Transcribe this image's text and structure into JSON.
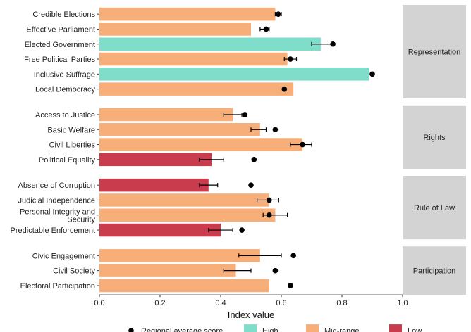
{
  "chart_data": {
    "type": "bar",
    "orientation": "horizontal",
    "xlabel": "Index value",
    "xlim": [
      0.0,
      1.0
    ],
    "xticks": [
      "0.0",
      "0.2",
      "0.4",
      "0.6",
      "0.8",
      "1.0"
    ],
    "grid": false,
    "legend_position": "bottom",
    "legend": {
      "marker_label": "Regional average score",
      "categories": [
        {
          "key": "high",
          "label": "High",
          "color": "#7FDEC9"
        },
        {
          "key": "mid",
          "label": "Mid-range",
          "color": "#F7AE78"
        },
        {
          "key": "low",
          "label": "Low",
          "color": "#C83C4E"
        }
      ]
    },
    "panels": [
      {
        "label": "Representation",
        "rows": [
          {
            "label": "Credible Elections",
            "value": 0.58,
            "category": "mid",
            "regional": 0.59,
            "err": [
              0.58,
              0.6
            ]
          },
          {
            "label": "Effective Parliament",
            "value": 0.5,
            "category": "mid",
            "regional": 0.55,
            "err": [
              0.53,
              0.56
            ]
          },
          {
            "label": "Elected Government",
            "value": 0.73,
            "category": "high",
            "regional": 0.77,
            "err": [
              0.7,
              0.77
            ]
          },
          {
            "label": "Free Political Parties",
            "value": 0.62,
            "category": "mid",
            "regional": 0.63,
            "err": [
              0.61,
              0.65
            ]
          },
          {
            "label": "Inclusive Suffrage",
            "value": 0.89,
            "category": "high",
            "regional": 0.9,
            "err": null
          },
          {
            "label": "Local Democracy",
            "value": 0.64,
            "category": "mid",
            "regional": 0.61,
            "err": null
          }
        ]
      },
      {
        "label": "Rights",
        "rows": [
          {
            "label": "Access to Justice",
            "value": 0.44,
            "category": "mid",
            "regional": 0.48,
            "err": [
              0.41,
              0.47
            ]
          },
          {
            "label": "Basic Welfare",
            "value": 0.53,
            "category": "mid",
            "regional": 0.58,
            "err": [
              0.5,
              0.55
            ]
          },
          {
            "label": "Civil Liberties",
            "value": 0.67,
            "category": "mid",
            "regional": 0.67,
            "err": [
              0.63,
              0.7
            ]
          },
          {
            "label": "Political Equality",
            "value": 0.37,
            "category": "low",
            "regional": 0.51,
            "err": [
              0.33,
              0.41
            ]
          }
        ]
      },
      {
        "label": "Rule of Law",
        "rows": [
          {
            "label": "Absence of Corruption",
            "value": 0.36,
            "category": "low",
            "regional": 0.5,
            "err": [
              0.33,
              0.39
            ]
          },
          {
            "label": "Judicial Independence",
            "value": 0.56,
            "category": "mid",
            "regional": 0.56,
            "err": [
              0.52,
              0.59
            ]
          },
          {
            "label": "Personal Integrity and Security",
            "value": 0.58,
            "category": "mid",
            "regional": 0.56,
            "err": [
              0.54,
              0.62
            ]
          },
          {
            "label": "Predictable Enforcement",
            "value": 0.4,
            "category": "low",
            "regional": 0.47,
            "err": [
              0.36,
              0.44
            ]
          }
        ]
      },
      {
        "label": "Participation",
        "rows": [
          {
            "label": "Civic Engagement",
            "value": 0.53,
            "category": "mid",
            "regional": 0.64,
            "err": [
              0.46,
              0.6
            ]
          },
          {
            "label": "Civil Society",
            "value": 0.45,
            "category": "mid",
            "regional": 0.58,
            "err": [
              0.41,
              0.5
            ]
          },
          {
            "label": "Electoral Participation",
            "value": 0.56,
            "category": "mid",
            "regional": 0.63,
            "err": null
          }
        ]
      }
    ]
  }
}
